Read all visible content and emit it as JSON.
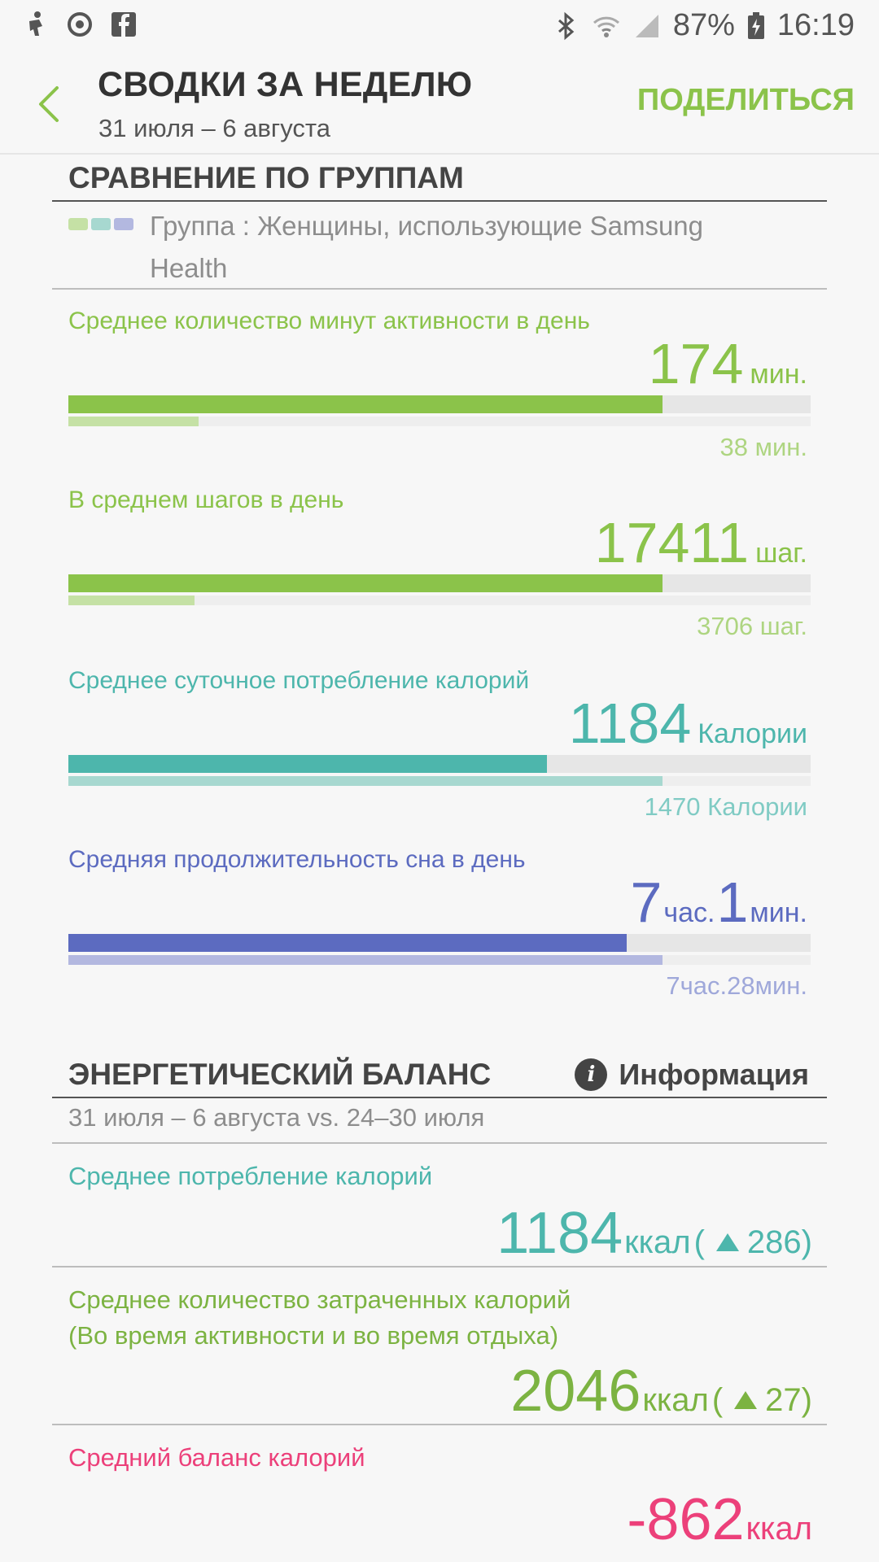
{
  "status_bar": {
    "battery": "87%",
    "time": "16:19"
  },
  "header": {
    "title": "СВОДКИ ЗА НЕДЕЛЮ",
    "subtitle": "31 июля – 6 августа",
    "share_label": "ПОДЕЛИТЬСЯ"
  },
  "group_comparison": {
    "title": "СРАВНЕНИЕ ПО ГРУППАМ",
    "legend_text": "Группа : Женщины, использующие Samsung Health",
    "legend_colors": [
      "#c5e1a5",
      "#a7d8d0",
      "#b3b8e0"
    ],
    "metrics": [
      {
        "label": "Среднее количество минут активности в день",
        "value": "174",
        "unit": "мин.",
        "group_value": "38 мин.",
        "fill_fraction": 0.8,
        "group_fill_fraction": 0.175,
        "color": "#8bc34a",
        "group_color": "#c5e1a5",
        "group_text_color": "#aed581"
      },
      {
        "label": "В среднем шагов в день",
        "value": "17411",
        "unit": "шаг.",
        "group_value": "3706 шаг.",
        "fill_fraction": 0.8,
        "group_fill_fraction": 0.17,
        "color": "#8bc34a",
        "group_color": "#c5e1a5",
        "group_text_color": "#aed581"
      },
      {
        "label": "Среднее суточное потребление калорий",
        "value": "1184",
        "unit": "Калории",
        "group_value": "1470 Калории",
        "fill_fraction": 0.645,
        "group_fill_fraction": 0.8,
        "color": "#4db6ac",
        "group_color": "#a7d8d0",
        "group_text_color": "#80cbc4"
      },
      {
        "label": "Средняя продолжительность сна в день",
        "value_hours": "7",
        "unit_hours": "час.",
        "value_minutes": "1",
        "unit_minutes": "мин.",
        "group_value": "7час.28мин.",
        "fill_fraction": 0.752,
        "group_fill_fraction": 0.8,
        "color": "#5c6bc0",
        "group_color": "#b3b8e0",
        "group_text_color": "#9fa8da"
      }
    ]
  },
  "energy_balance": {
    "title": "ЭНЕРГЕТИЧЕСКИЙ БАЛАНС",
    "info_label": "Информация",
    "period": "31 июля – 6 августа vs. 24–30 июля",
    "items": [
      {
        "label": "Среднее потребление калорий",
        "value": "1184",
        "unit": "ккал",
        "delta": "286",
        "color": "#4db6ac"
      },
      {
        "label_line1": "Среднее количество затраченных калорий",
        "label_line2": "(Во время активности и во время отдыха)",
        "value": "2046",
        "unit": "ккал",
        "delta": "27",
        "color": "#7cb342"
      },
      {
        "label": "Средний баланс калорий",
        "value": "-862",
        "unit": "ккал",
        "color": "#ec407a"
      }
    ]
  }
}
